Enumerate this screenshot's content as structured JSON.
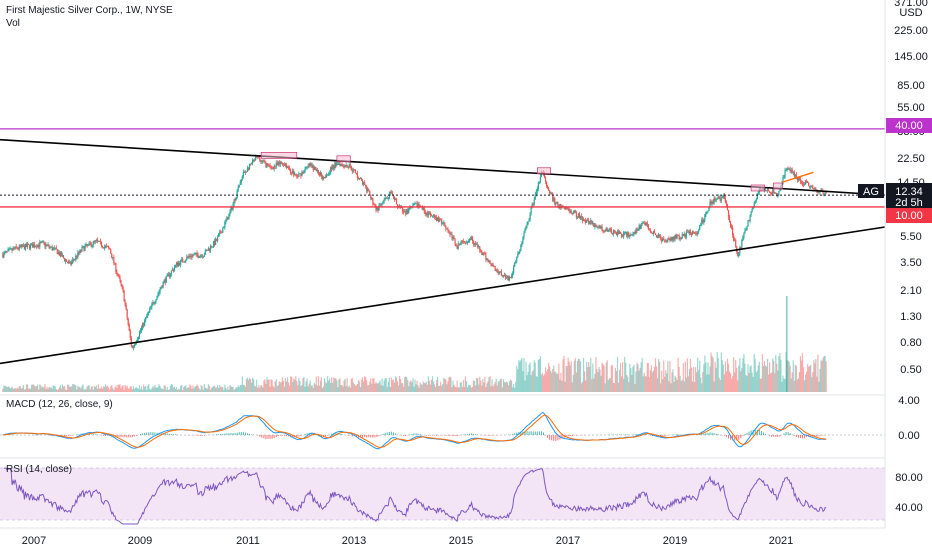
{
  "header": {
    "title": "First Majestic Silver Corp., 1W, NYSE",
    "vol_label": "Vol",
    "currency": "USD",
    "top_price": "371.00"
  },
  "price_axis_labels": [
    "225.00",
    "145.00",
    "85.00",
    "55.00",
    "33.00",
    "22.50",
    "14.50",
    "5.50",
    "3.50",
    "2.10",
    "1.30",
    "0.80",
    "0.50"
  ],
  "price_tags": {
    "resistance": "40.00",
    "ticker": "AG",
    "last_price": "12.34",
    "countdown": "2d 5h",
    "support": "10.00"
  },
  "macd": {
    "label": "MACD (12, 26, close, 9)",
    "axis_labels": [
      "4.00",
      "0.00"
    ]
  },
  "rsi": {
    "label": "RSI (14, close)",
    "axis_labels": [
      "80.00",
      "40.00"
    ]
  },
  "time_axis_labels": [
    "2007",
    "2009",
    "2011",
    "2013",
    "2015",
    "2017",
    "2019",
    "2021"
  ],
  "colors": {
    "up": "#26a69a",
    "down": "#ef5350",
    "macd": "#2196f3",
    "signal": "#ff6d00",
    "rsi": "#7e57c2",
    "rsi_band": "#f3e5f5",
    "resistance": "#bb33cc",
    "support": "#f23645",
    "trendline": "#000000",
    "tag_dark": "#131722"
  },
  "chart_data": {
    "type": "candlestick",
    "symbol": "AG",
    "exchange": "NYSE",
    "interval": "1W",
    "scale": "log",
    "x_range": [
      "2006-06",
      "2021-11"
    ],
    "y_range": [
      0.4,
      371
    ],
    "price_path": [
      [
        "2006-06",
        4.3
      ],
      [
        "2006-09",
        4.8
      ],
      [
        "2007-03",
        5.2
      ],
      [
        "2007-06",
        4.6
      ],
      [
        "2007-09",
        3.6
      ],
      [
        "2007-12",
        4.8
      ],
      [
        "2008-03",
        5.4
      ],
      [
        "2008-06",
        4.7
      ],
      [
        "2008-09",
        2.2
      ],
      [
        "2008-11",
        0.8
      ],
      [
        "2009-03",
        1.6
      ],
      [
        "2009-06",
        2.6
      ],
      [
        "2009-09",
        3.6
      ],
      [
        "2009-12",
        4.2
      ],
      [
        "2010-03",
        4.3
      ],
      [
        "2010-06",
        5.5
      ],
      [
        "2010-09",
        9.0
      ],
      [
        "2010-12",
        18.0
      ],
      [
        "2011-03",
        24.0
      ],
      [
        "2011-06",
        20.0
      ],
      [
        "2011-09",
        22.0
      ],
      [
        "2011-12",
        17.0
      ],
      [
        "2012-03",
        21.0
      ],
      [
        "2012-06",
        17.0
      ],
      [
        "2012-09",
        22.0
      ],
      [
        "2012-12",
        20.5
      ],
      [
        "2013-03",
        15.0
      ],
      [
        "2013-06",
        9.5
      ],
      [
        "2013-09",
        12.5
      ],
      [
        "2013-12",
        9.0
      ],
      [
        "2014-03",
        10.5
      ],
      [
        "2014-06",
        8.5
      ],
      [
        "2014-09",
        7.5
      ],
      [
        "2014-12",
        5.0
      ],
      [
        "2015-03",
        5.8
      ],
      [
        "2015-06",
        4.2
      ],
      [
        "2015-09",
        3.2
      ],
      [
        "2015-12",
        2.8
      ],
      [
        "2016-03",
        6.0
      ],
      [
        "2016-07",
        18.5
      ],
      [
        "2016-10",
        10.5
      ],
      [
        "2017-01",
        9.5
      ],
      [
        "2017-06",
        7.5
      ],
      [
        "2017-10",
        6.5
      ],
      [
        "2018-03",
        6.0
      ],
      [
        "2018-06",
        7.5
      ],
      [
        "2018-10",
        5.5
      ],
      [
        "2019-01",
        5.8
      ],
      [
        "2019-06",
        6.5
      ],
      [
        "2019-09",
        11.0
      ],
      [
        "2019-12",
        12.0
      ],
      [
        "2020-03",
        4.2
      ],
      [
        "2020-06",
        9.0
      ],
      [
        "2020-08",
        14.0
      ],
      [
        "2020-12",
        12.5
      ],
      [
        "2021-02",
        20.0
      ],
      [
        "2021-05",
        16.0
      ],
      [
        "2021-08",
        14.0
      ],
      [
        "2021-11",
        12.34
      ]
    ],
    "last_price": 12.34,
    "horizontal_levels": [
      {
        "price": 40.0,
        "color": "#bb33cc"
      },
      {
        "price": 10.0,
        "color": "#f23645"
      }
    ],
    "trendlines": [
      {
        "from": [
          "2006-06",
          33.0
        ],
        "to": [
          "2021-11",
          12.34
        ]
      },
      {
        "from": [
          "2006-06",
          0.62
        ],
        "to": [
          "2021-11",
          7.0
        ]
      }
    ],
    "highlighted_zones": [
      {
        "from": "2011-04",
        "to": "2011-12",
        "price": 25.0
      },
      {
        "from": "2012-09",
        "to": "2012-12",
        "price": 23.5
      },
      {
        "from": "2016-06",
        "to": "2016-09",
        "price": 19.0
      },
      {
        "from": "2020-06",
        "to": "2020-09",
        "price": 14.0
      },
      {
        "from": "2020-11",
        "to": "2021-01",
        "price": 14.5
      }
    ],
    "volume_spike": {
      "date": "2021-02",
      "value": 1.9
    },
    "indicators": [
      {
        "name": "MACD",
        "params": "12, 26, close, 9",
        "y_ticks": [
          4.0,
          0.0
        ]
      },
      {
        "name": "RSI",
        "params": "14, close",
        "y_ticks": [
          80.0,
          40.0
        ]
      }
    ],
    "x_ticks": [
      "2007",
      "2009",
      "2011",
      "2013",
      "2015",
      "2017",
      "2019",
      "2021"
    ]
  }
}
